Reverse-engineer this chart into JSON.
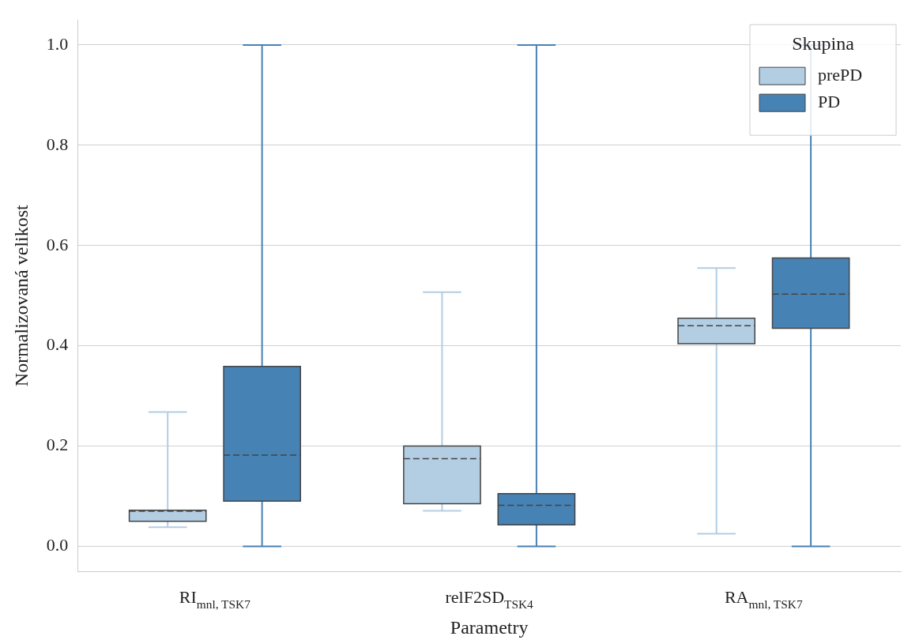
{
  "chart_data": {
    "type": "box",
    "xlabel": "Parametry",
    "ylabel": "Normalizovaná velikost",
    "legend_title": "Skupina",
    "legend": "top right",
    "grid": "y",
    "categories": [
      "RI$_{mnl, TSK7}$",
      "relF2SD$_{TSK4}$",
      "RA$_{mnl, TSK7}$"
    ],
    "ylim": [
      -0.05,
      1.05
    ],
    "yticks": [
      {
        "value": 0,
        "label": "0.0"
      },
      0.2,
      0.4,
      0.6,
      0.8,
      {
        "value": 1,
        "label": "1.0"
      }
    ],
    "series": [
      {
        "name": "prePD",
        "color": "#b3cde3",
        "boxes": [
          {
            "low": 0.038,
            "q1": 0.05,
            "median": 0.07,
            "q3": 0.072,
            "high": 0.268
          },
          {
            "low": 0.071,
            "q1": 0.085,
            "median": 0.175,
            "q3": 0.2,
            "high": 0.507
          },
          {
            "low": 0.025,
            "q1": 0.404,
            "median": 0.44,
            "q3": 0.455,
            "high": 0.555
          }
        ]
      },
      {
        "name": "PD",
        "color": "#4682b4",
        "boxes": [
          {
            "low": 0,
            "q1": 0.09,
            "median": 0.182,
            "q3": 0.359,
            "high": 1
          },
          {
            "low": 0,
            "q1": 0.043,
            "median": 0.082,
            "q3": 0.105,
            "high": 1
          },
          {
            "low": 0,
            "q1": 0.435,
            "median": 0.503,
            "q3": 0.575,
            "high": 1
          }
        ]
      }
    ]
  }
}
